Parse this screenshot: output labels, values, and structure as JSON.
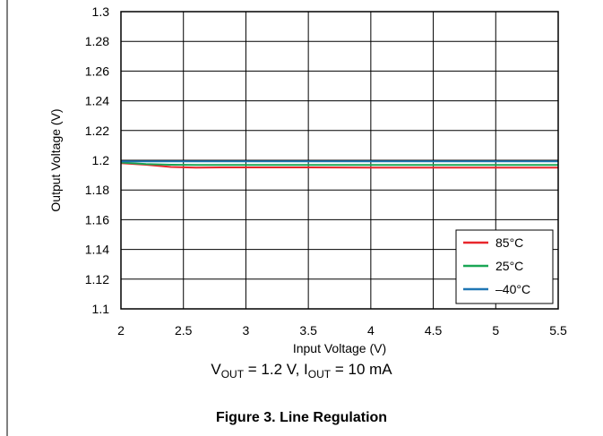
{
  "chart_data": {
    "type": "line",
    "xlabel": "Input Voltage (V)",
    "ylabel": "Output Voltage (V)",
    "xlim": [
      2,
      5.5
    ],
    "ylim": [
      1.1,
      1.3
    ],
    "x_ticks": [
      "2",
      "2.5",
      "3",
      "3.5",
      "4",
      "4.5",
      "5",
      "5.5"
    ],
    "y_ticks": [
      "1.1",
      "1.12",
      "1.14",
      "1.16",
      "1.18",
      "1.2",
      "1.22",
      "1.24",
      "1.26",
      "1.28",
      "1.3"
    ],
    "grid": true,
    "legend_position": "bottom-right",
    "series": [
      {
        "name": "85°C",
        "color": "#e8262b",
        "x": [
          2.0,
          2.2,
          2.4,
          2.6,
          2.8,
          3.0,
          3.5,
          4.0,
          4.5,
          5.0,
          5.5
        ],
        "y": [
          1.198,
          1.197,
          1.1955,
          1.195,
          1.1952,
          1.1952,
          1.1952,
          1.195,
          1.195,
          1.195,
          1.195
        ]
      },
      {
        "name": "25°C",
        "color": "#1aa655",
        "x": [
          2.0,
          2.2,
          2.4,
          2.6,
          3.0,
          3.5,
          4.0,
          4.5,
          5.0,
          5.5
        ],
        "y": [
          1.1985,
          1.1975,
          1.197,
          1.1968,
          1.1968,
          1.1968,
          1.1968,
          1.1968,
          1.1968,
          1.1968
        ]
      },
      {
        "name": "–40°C",
        "color": "#1f77b4",
        "x": [
          2.0,
          2.5,
          3.0,
          3.5,
          4.0,
          4.5,
          5.0,
          5.5
        ],
        "y": [
          1.1992,
          1.1992,
          1.1992,
          1.1992,
          1.1992,
          1.1992,
          1.1992,
          1.1992
        ]
      }
    ],
    "conditions": {
      "v_main": "V",
      "v_sub": "OUT",
      "v_rest": " = 1.2 V, ",
      "i_main": "I",
      "i_sub": "OUT",
      "i_rest": " = 10 mA"
    },
    "figure_caption": "Figure 3. Line Regulation"
  }
}
